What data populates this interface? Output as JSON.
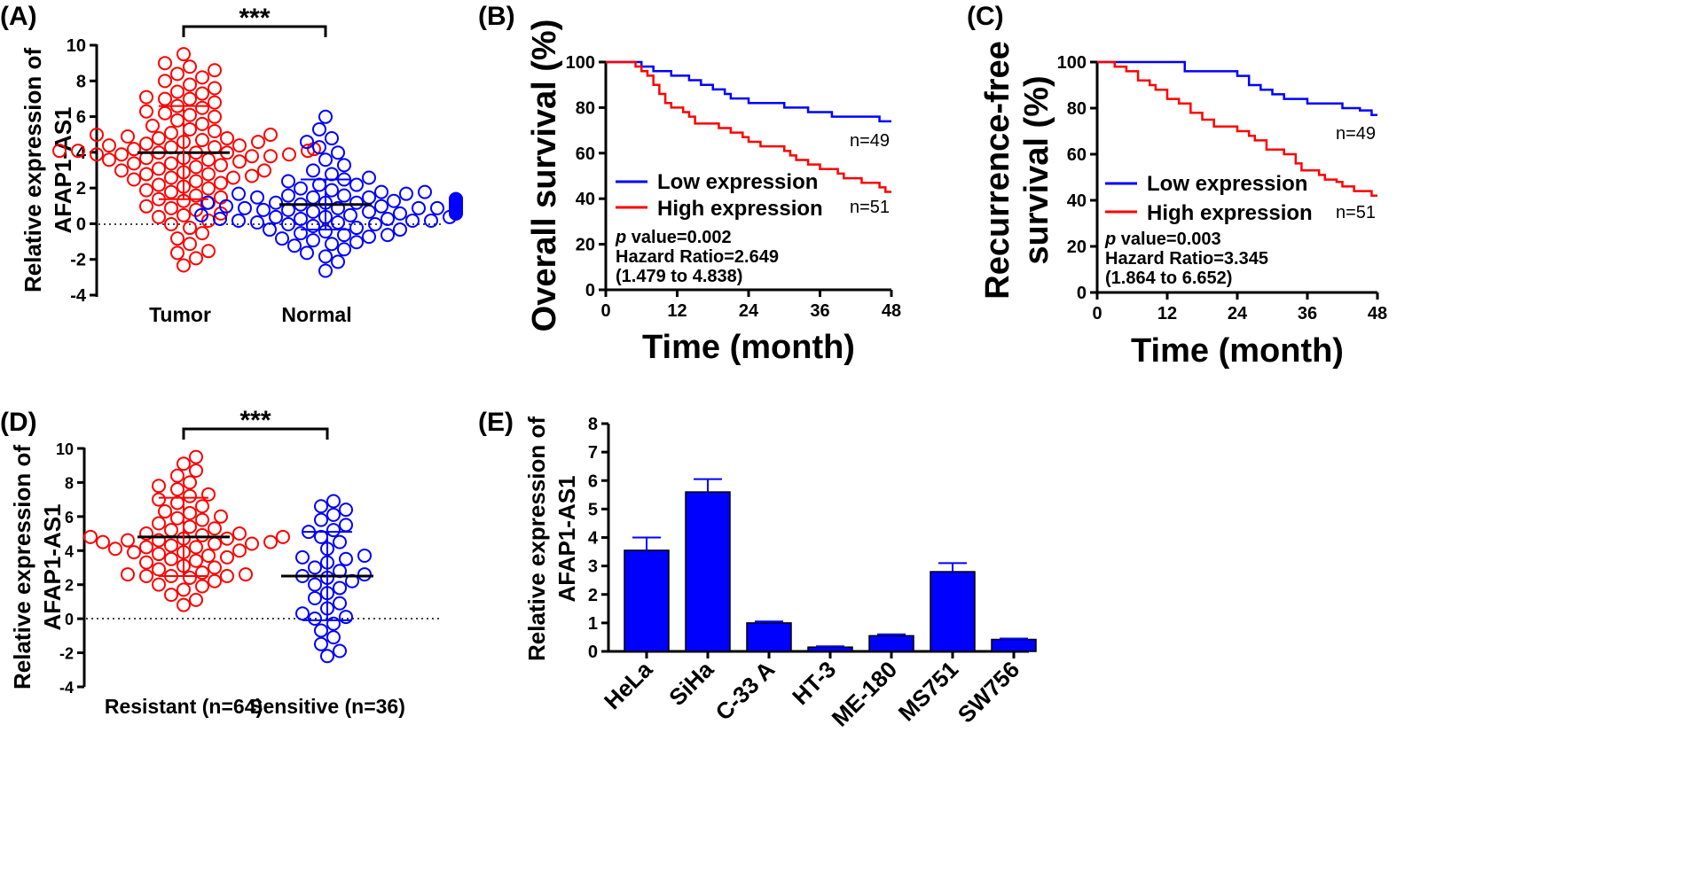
{
  "colors": {
    "red": "#ff0000",
    "blue": "#0000ff",
    "black": "#000000"
  },
  "chart_data": [
    {
      "panel": "(A)",
      "type": "scatter",
      "ylabel_line1": "Relative expression of",
      "ylabel_line2": "AFAP1-AS1",
      "ylim": [
        -4,
        10
      ],
      "yticks": [
        "10",
        "8",
        "6",
        "4",
        "2",
        "0",
        "-2",
        "-4"
      ],
      "categories": [
        "Tumor",
        "Normal"
      ],
      "significance": "***",
      "groups": [
        {
          "name": "Tumor",
          "color": "red",
          "mean": 4.0,
          "sd_low": 1.4,
          "sd_high": 6.6,
          "values": [
            9.5,
            9.0,
            8.8,
            8.6,
            8.4,
            8.2,
            8.0,
            7.8,
            7.6,
            7.4,
            7.3,
            7.1,
            7.0,
            6.8,
            6.6,
            6.5,
            6.3,
            6.1,
            6.0,
            5.8,
            5.6,
            5.5,
            5.3,
            5.1,
            5.0,
            4.9,
            4.8,
            4.7,
            4.6,
            4.5,
            4.4,
            4.4,
            4.3,
            4.3,
            4.2,
            4.2,
            4.1,
            4.1,
            4.1,
            4.0,
            4.0,
            4.0,
            3.9,
            3.9,
            3.9,
            3.8,
            3.8,
            3.7,
            3.7,
            3.6,
            3.5,
            3.4,
            3.3,
            3.2,
            3.1,
            3.0,
            2.9,
            2.8,
            2.7,
            2.6,
            2.5,
            2.4,
            2.3,
            2.2,
            2.1,
            2.0,
            1.9,
            1.8,
            1.6,
            1.4,
            1.2,
            1.0,
            0.8,
            0.6,
            0.4,
            0.2,
            0.0,
            -0.2,
            -0.5,
            -0.8,
            -1.1,
            -1.5,
            -1.9,
            -2.3,
            5.0,
            5.2,
            4.6,
            3.4,
            3.0,
            2.6,
            1.3,
            0.9,
            -1.6,
            6.2,
            7.0,
            4.8,
            3.6,
            2.8,
            1.5,
            0.5
          ]
        },
        {
          "name": "Normal",
          "color": "blue",
          "mean": 1.1,
          "sd_low": -0.3,
          "sd_high": 2.5,
          "values": [
            6.0,
            5.3,
            4.8,
            4.6,
            4.3,
            4.0,
            3.6,
            3.3,
            3.0,
            2.8,
            2.6,
            2.4,
            2.2,
            2.0,
            1.9,
            1.8,
            1.7,
            1.6,
            1.5,
            1.5,
            1.4,
            1.4,
            1.3,
            1.3,
            1.3,
            1.2,
            1.2,
            1.2,
            1.2,
            1.1,
            1.1,
            1.1,
            1.1,
            1.1,
            1.0,
            1.0,
            1.0,
            1.0,
            0.9,
            0.9,
            0.9,
            0.9,
            0.8,
            0.8,
            0.8,
            0.7,
            0.7,
            0.7,
            0.6,
            0.6,
            0.5,
            0.5,
            0.4,
            0.4,
            0.3,
            0.3,
            0.2,
            0.2,
            0.1,
            0.1,
            0.0,
            0.0,
            -0.1,
            -0.2,
            -0.3,
            -0.4,
            -0.5,
            -0.6,
            -0.7,
            -0.8,
            -0.9,
            -1.0,
            -1.2,
            -1.4,
            -1.6,
            -1.8,
            -2.1,
            -2.6,
            1.2,
            1.0,
            0.8,
            1.4,
            1.6,
            0.6,
            0.2,
            -0.3,
            2.5,
            1.8,
            -1.1,
            0.4,
            1.3,
            0.9,
            1.1,
            0.7,
            1.5,
            1.0,
            0.3,
            -0.6,
            1.7,
            2.2
          ]
        }
      ]
    },
    {
      "panel": "(B)",
      "type": "line",
      "ylabel": "Overall survival (%)",
      "xlabel": "Time (month)",
      "xlim": [
        0,
        48
      ],
      "ylim": [
        0,
        100
      ],
      "xticks": [
        "0",
        "12",
        "24",
        "36",
        "48"
      ],
      "yticks": [
        "100",
        "80",
        "60",
        "40",
        "20",
        "0"
      ],
      "legend": [
        "Low expression",
        "High expression"
      ],
      "n_low": "n=49",
      "n_high": "n=51",
      "p_label": "p",
      "p_text": " value=0.002",
      "hr_text": "Hazard Ratio=2.649",
      "ci_text": "(1.479 to 4.838)",
      "series": [
        {
          "name": "Low expression",
          "color": "blue",
          "steps": [
            [
              0,
              100
            ],
            [
              6,
              98
            ],
            [
              8,
              96
            ],
            [
              11,
              94
            ],
            [
              14,
              92
            ],
            [
              16,
              90
            ],
            [
              18,
              88
            ],
            [
              20,
              86
            ],
            [
              21,
              84
            ],
            [
              24,
              82
            ],
            [
              30,
              80
            ],
            [
              34,
              78
            ],
            [
              38,
              76
            ],
            [
              46,
              74
            ],
            [
              48,
              74
            ]
          ]
        },
        {
          "name": "High expression",
          "color": "red",
          "steps": [
            [
              0,
              100
            ],
            [
              5,
              98
            ],
            [
              6,
              96
            ],
            [
              7,
              94
            ],
            [
              8,
              90
            ],
            [
              9,
              86
            ],
            [
              10,
              82
            ],
            [
              11,
              80
            ],
            [
              13,
              78
            ],
            [
              14,
              76
            ],
            [
              15,
              73
            ],
            [
              19,
              71
            ],
            [
              21,
              69
            ],
            [
              23,
              67
            ],
            [
              24,
              65
            ],
            [
              26,
              63
            ],
            [
              30,
              61
            ],
            [
              31,
              59
            ],
            [
              32,
              57
            ],
            [
              34,
              55
            ],
            [
              36,
              53
            ],
            [
              39,
              51
            ],
            [
              40,
              49
            ],
            [
              43,
              47
            ],
            [
              46,
              45
            ],
            [
              47,
              43
            ],
            [
              48,
              43
            ]
          ]
        }
      ]
    },
    {
      "panel": "(C)",
      "type": "line",
      "ylabel_line1": "Recurrence-free",
      "ylabel_line2": "survival (%)",
      "xlabel": "Time (month)",
      "xlim": [
        0,
        48
      ],
      "ylim": [
        0,
        100
      ],
      "xticks": [
        "0",
        "12",
        "24",
        "36",
        "48"
      ],
      "yticks": [
        "100",
        "80",
        "60",
        "40",
        "20",
        "0"
      ],
      "legend": [
        "Low expression",
        "High expression"
      ],
      "n_low": "n=49",
      "n_high": "n=51",
      "p_label": "p",
      "p_text": " value=0.003",
      "hr_text": "Hazard Ratio=3.345",
      "ci_text": "(1.864 to 6.652)",
      "series": [
        {
          "name": "Low expression",
          "color": "blue",
          "steps": [
            [
              0,
              100
            ],
            [
              15,
              96
            ],
            [
              24,
              94
            ],
            [
              26,
              90
            ],
            [
              28,
              88
            ],
            [
              30,
              86
            ],
            [
              32,
              84
            ],
            [
              36,
              82
            ],
            [
              42,
              80
            ],
            [
              45,
              79
            ],
            [
              47,
              77
            ],
            [
              48,
              77
            ]
          ]
        },
        {
          "name": "High expression",
          "color": "red",
          "steps": [
            [
              0,
              100
            ],
            [
              3,
              98
            ],
            [
              5,
              96
            ],
            [
              7,
              92
            ],
            [
              9,
              90
            ],
            [
              10,
              88
            ],
            [
              12,
              84
            ],
            [
              14,
              82
            ],
            [
              16,
              78
            ],
            [
              18,
              75
            ],
            [
              20,
              72
            ],
            [
              24,
              70
            ],
            [
              26,
              68
            ],
            [
              27,
              66
            ],
            [
              29,
              62
            ],
            [
              32,
              60
            ],
            [
              34,
              56
            ],
            [
              35,
              53
            ],
            [
              38,
              51
            ],
            [
              39,
              49
            ],
            [
              41,
              48
            ],
            [
              42,
              46
            ],
            [
              44,
              44
            ],
            [
              47,
              42
            ],
            [
              48,
              42
            ]
          ]
        }
      ]
    },
    {
      "panel": "(D)",
      "type": "scatter",
      "ylabel_line1": "Relative expression of",
      "ylabel_line2": "AFAP1-AS1",
      "ylim": [
        -4,
        10
      ],
      "yticks": [
        "10",
        "8",
        "6",
        "4",
        "2",
        "0",
        "-2",
        "-4"
      ],
      "categories": [
        "Resistant (n=64)",
        "Sensitive (n=36)"
      ],
      "significance": "***",
      "groups": [
        {
          "name": "Resistant (n=64)",
          "color": "red",
          "mean": 4.8,
          "sd_low": 2.5,
          "sd_high": 7.1,
          "values": [
            9.5,
            9.1,
            8.7,
            8.4,
            8.0,
            7.8,
            7.6,
            7.3,
            7.0,
            6.8,
            6.6,
            6.3,
            6.0,
            5.8,
            5.6,
            5.4,
            5.2,
            5.0,
            4.9,
            4.8,
            4.7,
            4.6,
            4.5,
            4.4,
            4.3,
            4.2,
            4.1,
            4.0,
            3.9,
            3.8,
            3.7,
            3.6,
            3.5,
            3.3,
            3.1,
            2.9,
            2.7,
            2.6,
            2.5,
            2.5,
            2.4,
            2.2,
            2.0,
            1.7,
            1.4,
            1.1,
            0.8,
            5.0,
            4.6,
            4.4,
            5.3,
            3.9,
            6.2,
            7.2,
            2.6,
            3.4,
            4.8,
            5.9,
            4.2,
            2.5,
            1.9,
            3.0,
            4.7,
            4.5
          ]
        },
        {
          "name": "Sensitive (n=36)",
          "color": "blue",
          "mean": 2.5,
          "sd_low": -0.1,
          "sd_high": 5.1,
          "values": [
            6.9,
            6.6,
            6.4,
            6.1,
            5.8,
            5.5,
            5.1,
            4.8,
            4.5,
            4.1,
            3.7,
            3.5,
            3.3,
            3.0,
            2.8,
            2.6,
            2.4,
            2.2,
            2.0,
            1.8,
            1.5,
            1.2,
            0.9,
            0.6,
            0.3,
            0.0,
            -0.3,
            -0.7,
            -1.1,
            -1.5,
            -1.9,
            -2.2,
            3.6,
            2.5,
            0.1,
            5.2
          ]
        }
      ]
    },
    {
      "panel": "(E)",
      "type": "bar",
      "ylabel_line1": "Relative expression of",
      "ylabel_line2": "AFAP1-AS1",
      "ylim": [
        0,
        8
      ],
      "yticks": [
        "8",
        "7",
        "6",
        "5",
        "4",
        "3",
        "2",
        "1",
        "0"
      ],
      "categories": [
        "HeLa",
        "SiHa",
        "C-33 A",
        "HT-3",
        "ME-180",
        "MS751",
        "SW756"
      ],
      "values": [
        3.55,
        5.6,
        1.0,
        0.15,
        0.55,
        2.8,
        0.42
      ],
      "errors": [
        0.45,
        0.45,
        0.05,
        0.03,
        0.05,
        0.3,
        0.03
      ]
    }
  ]
}
